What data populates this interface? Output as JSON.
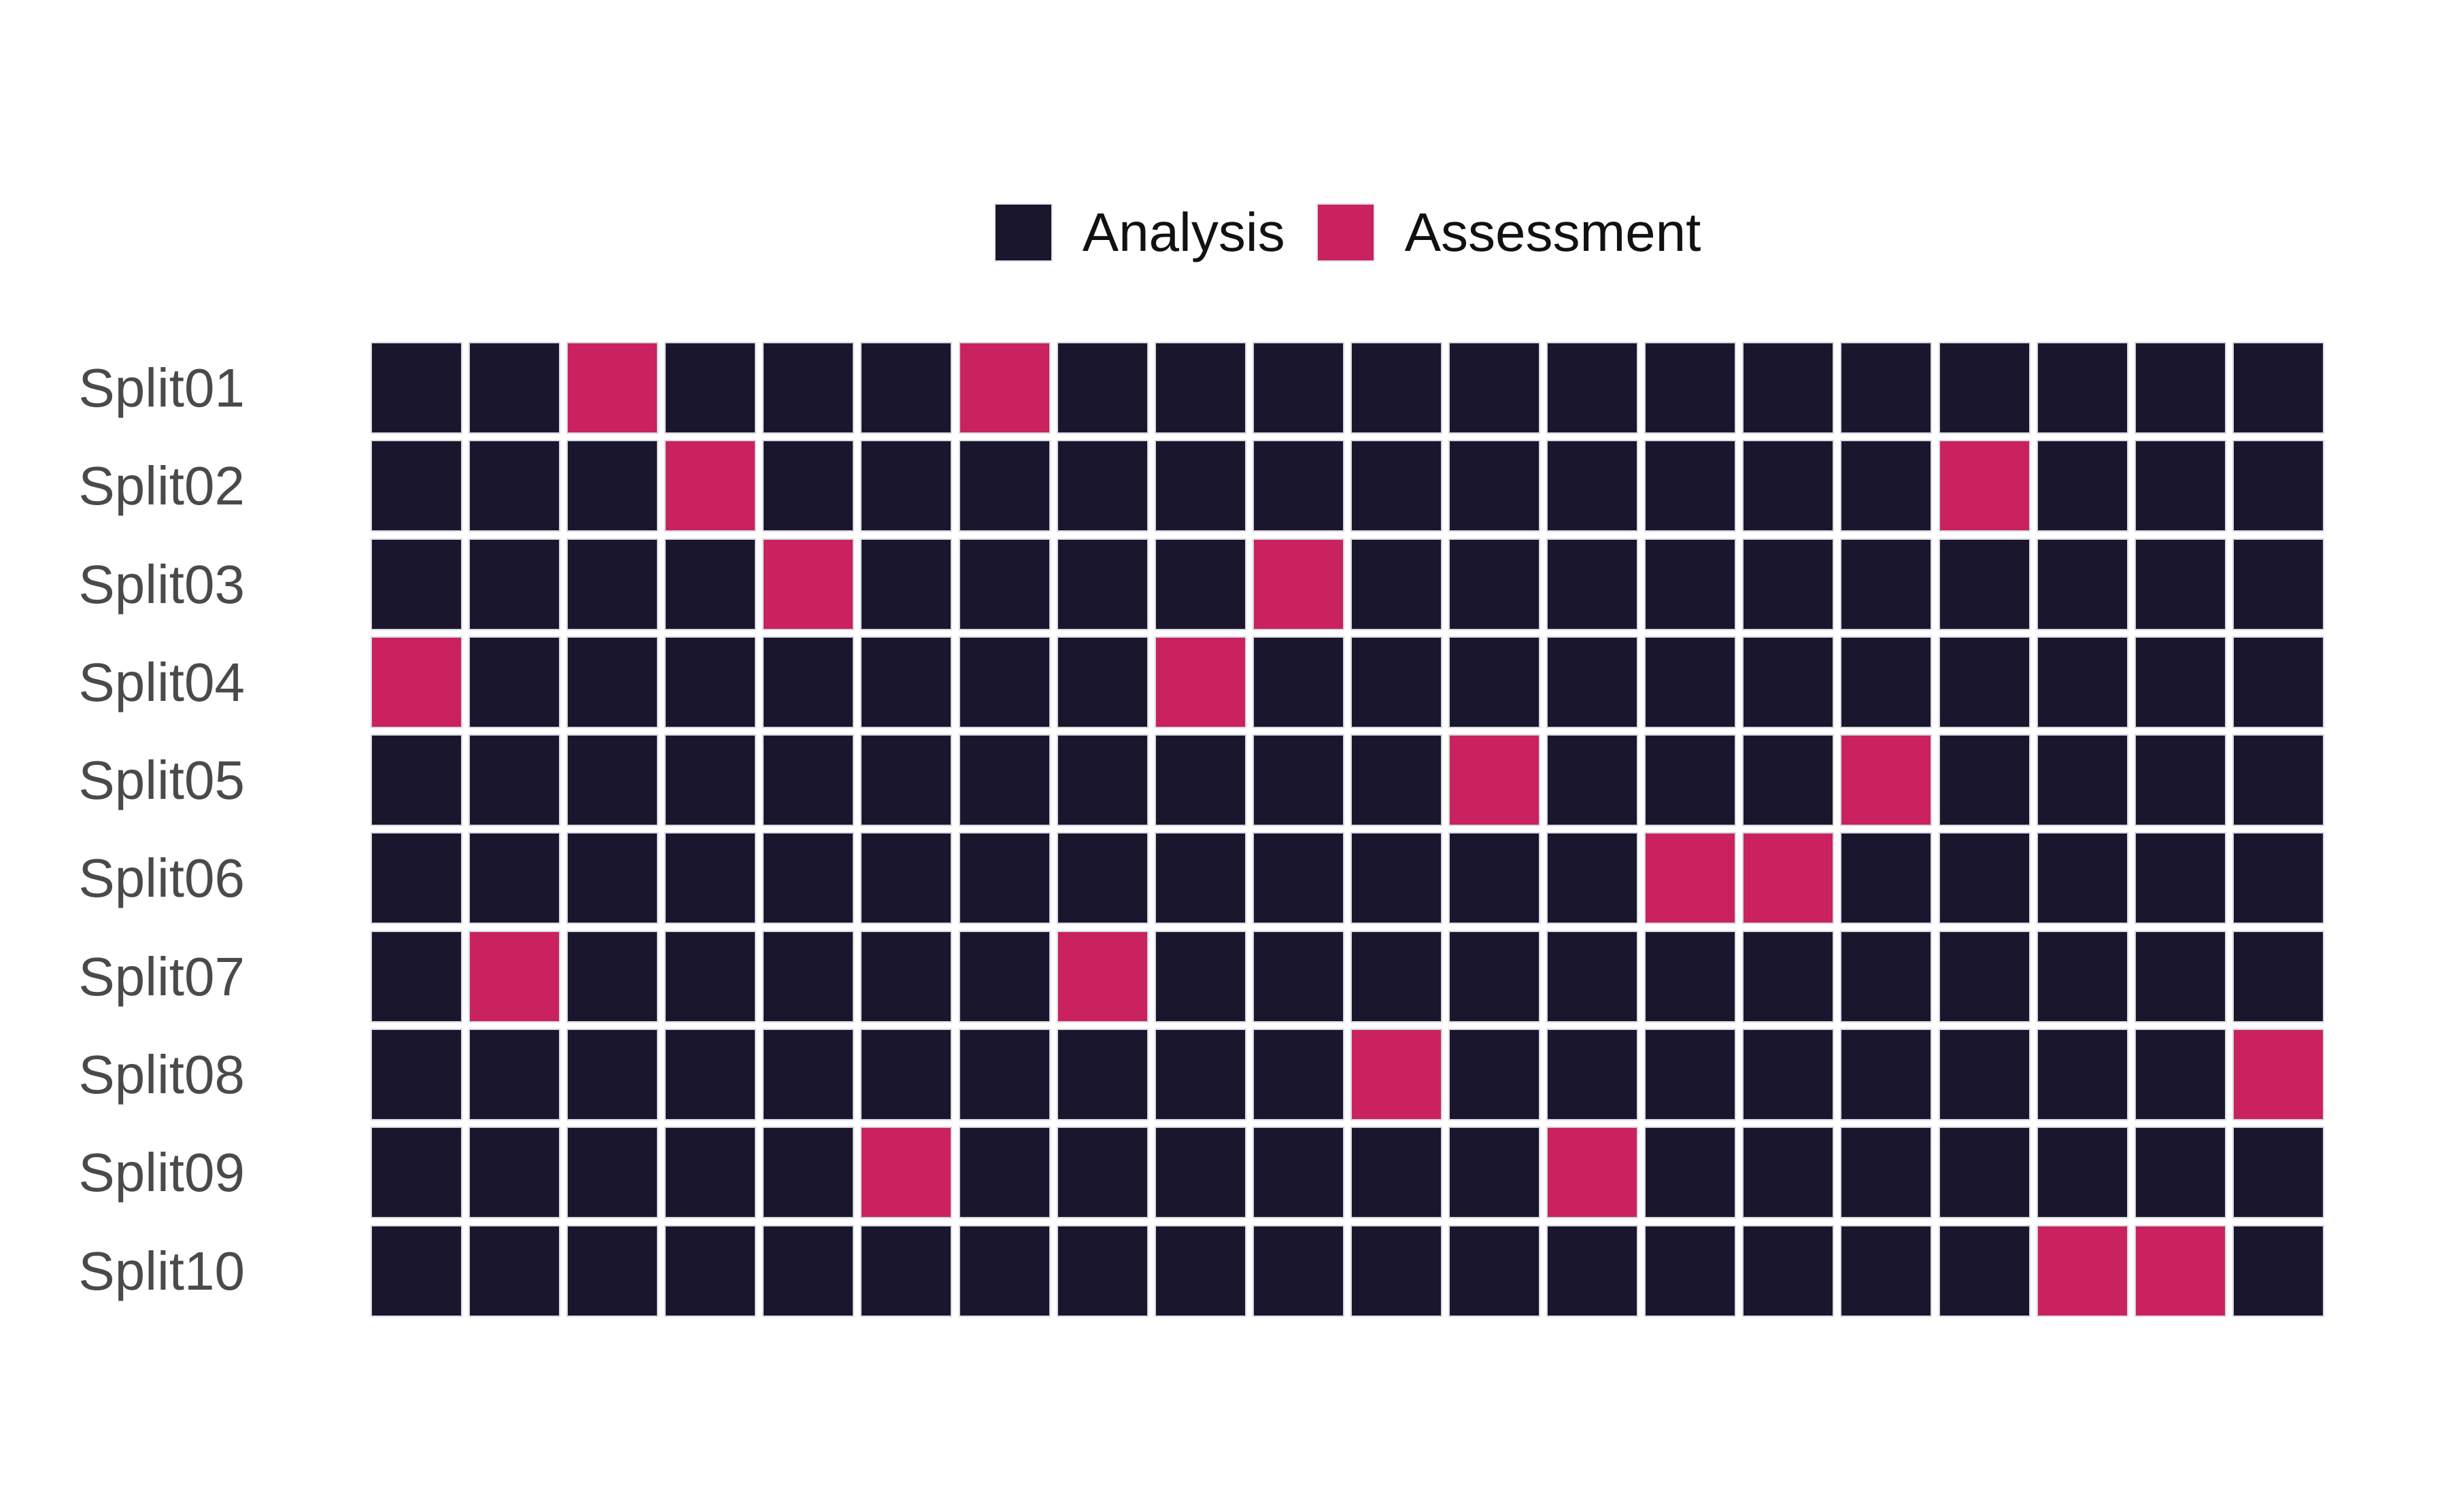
{
  "legend": {
    "position": "top",
    "items": [
      {
        "label": "Analysis",
        "color": "#1A162D"
      },
      {
        "label": "Assessment",
        "color": "#CA225E"
      }
    ]
  },
  "chart_data": {
    "type": "heatmap",
    "description": "Cross-validation resampling plot: 10 splits (rows) by 20 data positions (columns); each cell is either in the Analysis set or the Assessment set",
    "rows": [
      "Split01",
      "Split02",
      "Split03",
      "Split04",
      "Split05",
      "Split06",
      "Split07",
      "Split08",
      "Split09",
      "Split10"
    ],
    "n_columns": 20,
    "categories": [
      "Analysis",
      "Assessment"
    ],
    "default_value": "Analysis",
    "assessment_columns_by_row": [
      [
        3,
        7
      ],
      [
        4,
        17
      ],
      [
        5,
        10
      ],
      [
        1,
        9
      ],
      [
        12,
        16
      ],
      [
        14,
        15
      ],
      [
        2,
        8
      ],
      [
        11,
        20
      ],
      [
        6,
        13
      ],
      [
        18,
        19
      ]
    ],
    "legend_position": "top",
    "axis_titles": {
      "x": "",
      "y": ""
    },
    "grid": false
  },
  "colors": {
    "analysis": "#1A162D",
    "assessment": "#CA225E",
    "row_label_text": "#4A4A4A",
    "legend_text": "#111111",
    "background": "#FFFFFF",
    "cell_border": "#D8D8E2"
  }
}
